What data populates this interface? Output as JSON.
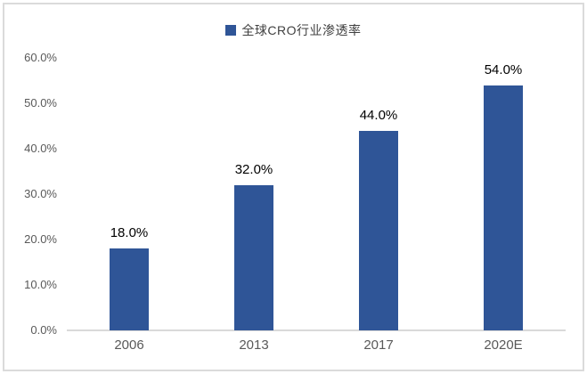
{
  "chart_data": {
    "type": "bar",
    "title": "",
    "legend": "全球CRO行业渗透率",
    "legend_position": "top",
    "categories": [
      "2006",
      "2013",
      "2017",
      "2020E"
    ],
    "values": [
      18.0,
      32.0,
      44.0,
      54.0
    ],
    "value_labels": [
      "18.0%",
      "32.0%",
      "44.0%",
      "54.0%"
    ],
    "xlabel": "",
    "ylabel": "",
    "ylim": [
      0,
      60
    ],
    "ytick_step": 10,
    "ytick_labels": [
      "0.0%",
      "10.0%",
      "20.0%",
      "30.0%",
      "40.0%",
      "50.0%",
      "60.0%"
    ],
    "grid": false
  },
  "colors": {
    "bar": "#2f5597",
    "legend_swatch": "#2f5597",
    "axis_line": "#d9d9d9",
    "frame_border": "#dbdbdb",
    "ytick_text": "#595959",
    "xlabel_text": "#595959",
    "data_label_text": "#000000",
    "legend_text": "#404040",
    "background": "#ffffff"
  }
}
